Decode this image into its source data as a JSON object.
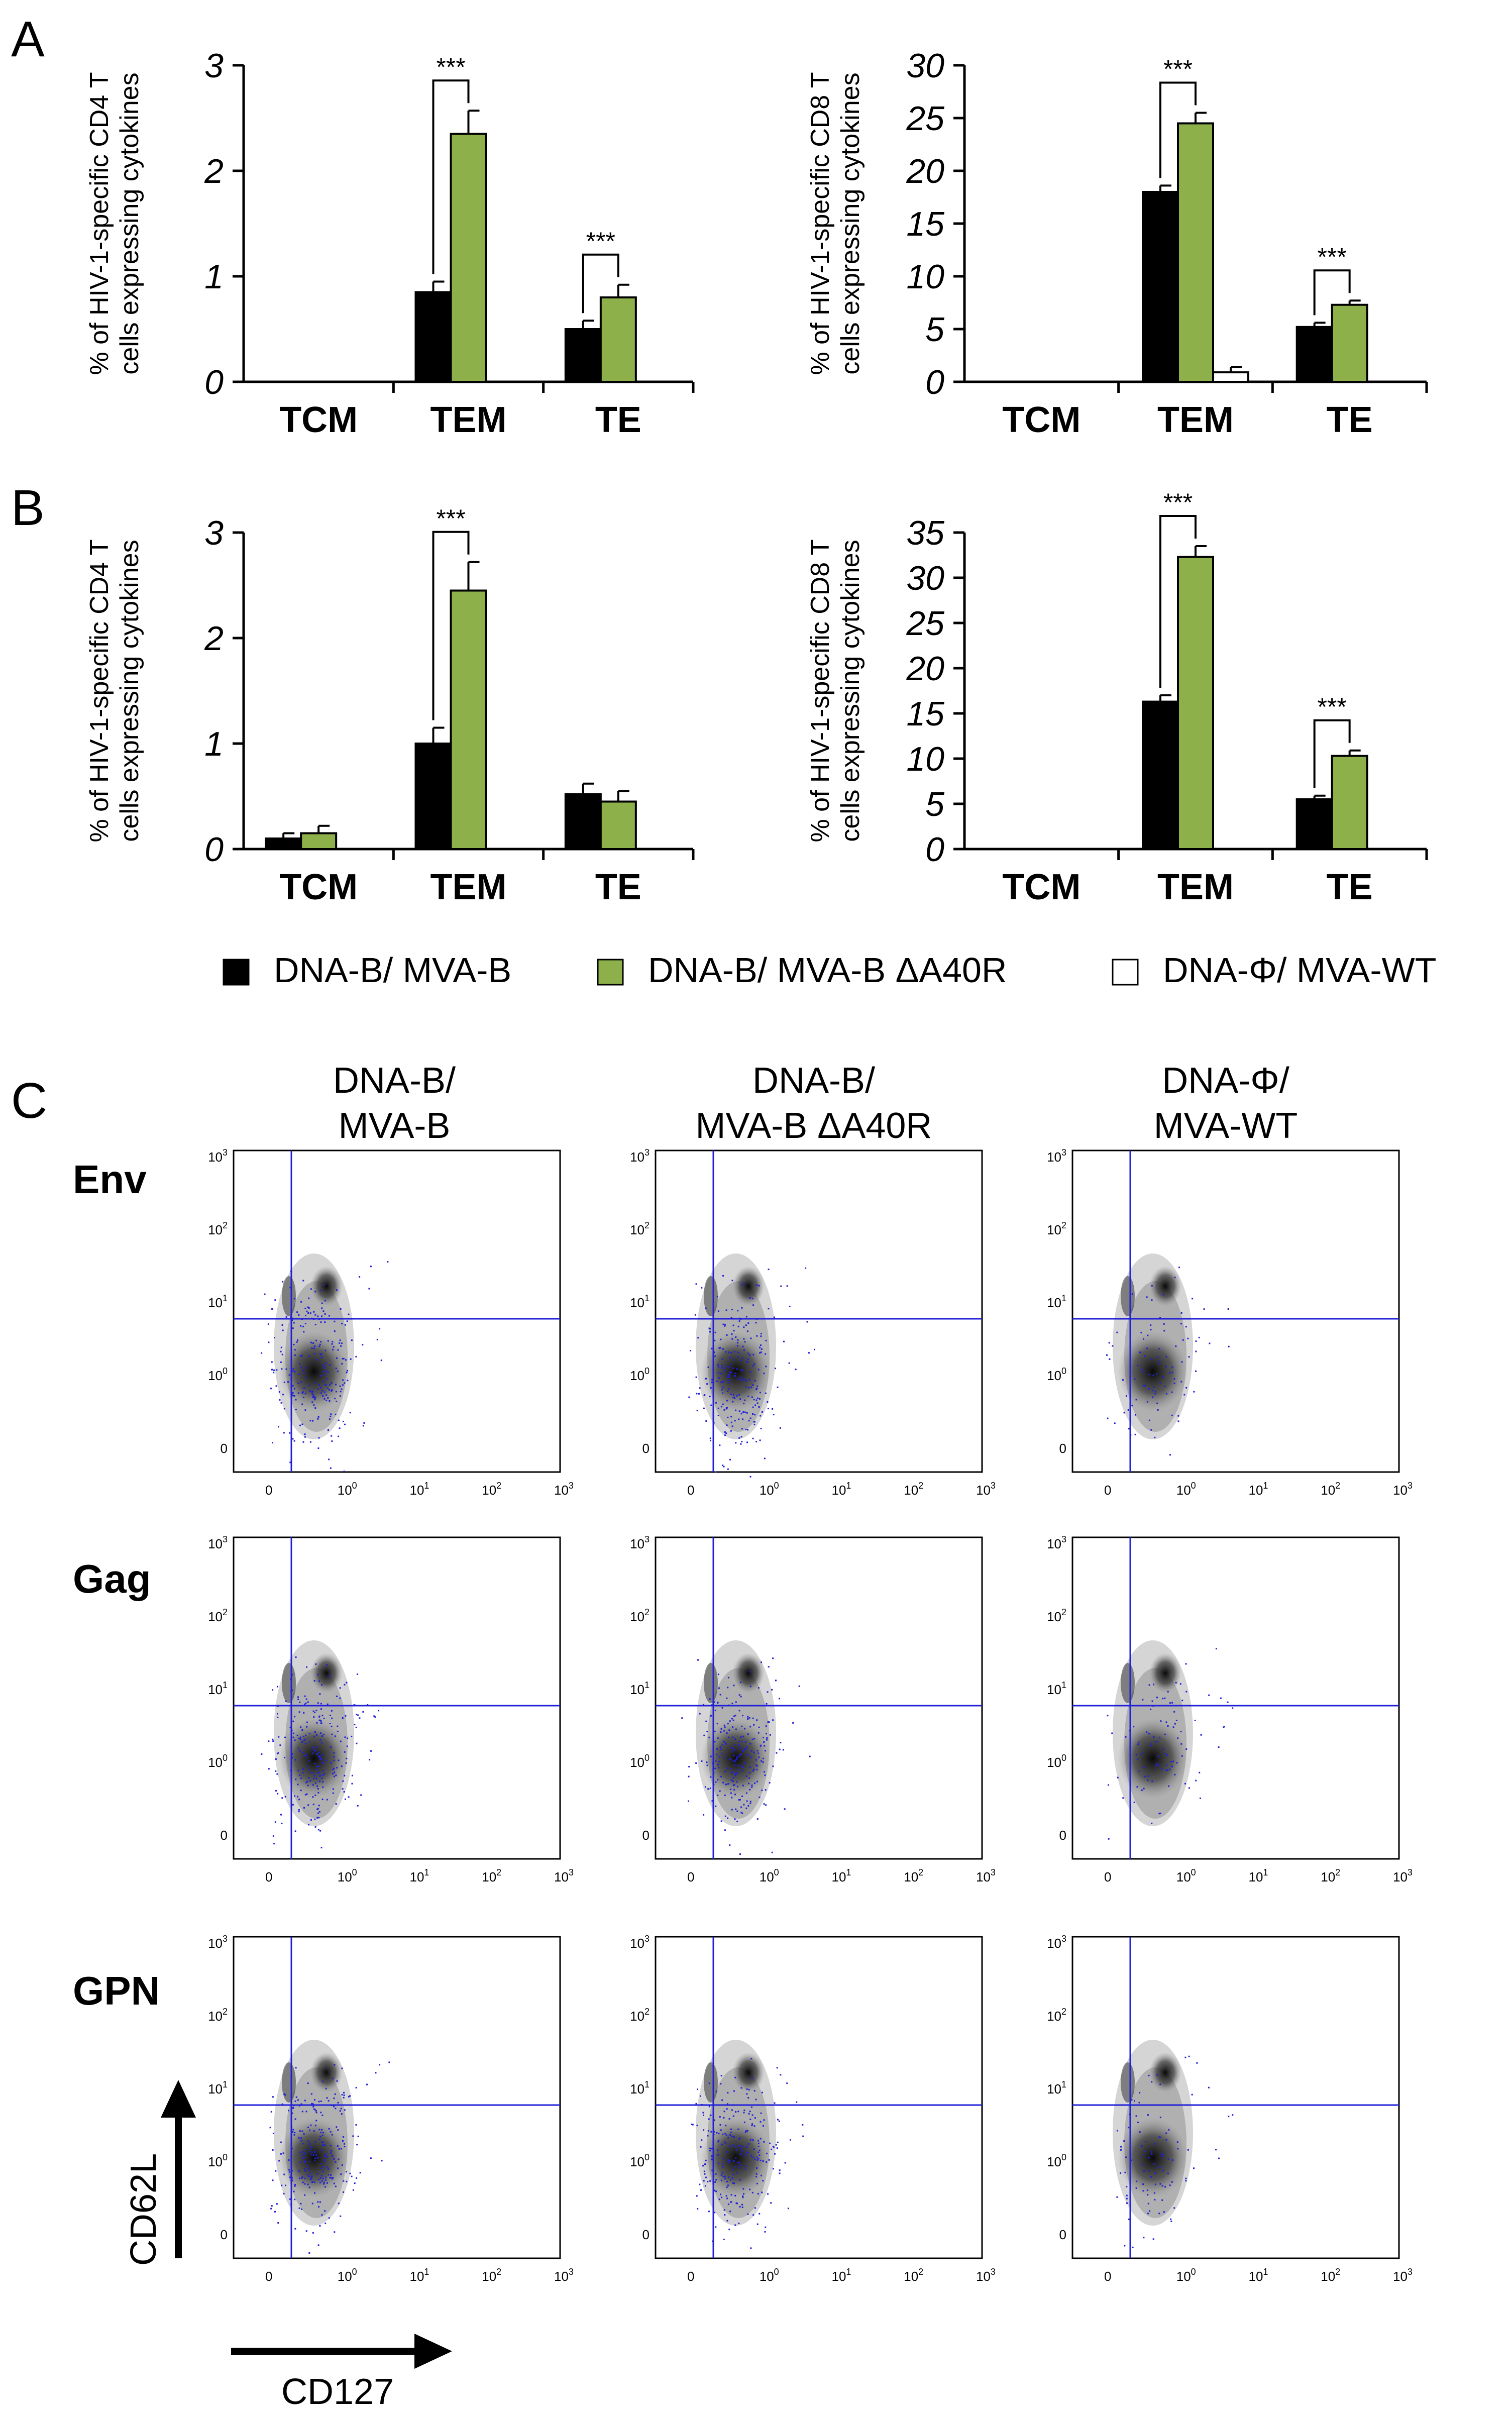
{
  "panel_labels": {
    "a": "A",
    "b": "B",
    "c": "C"
  },
  "colors": {
    "group1": "#000000",
    "group2": "#8db04b",
    "group3": "#ffffff",
    "gate": "#2020d8",
    "axis": "#000000"
  },
  "legend": {
    "items": [
      {
        "label": "DNA-B/ MVA-B",
        "color": "#000000"
      },
      {
        "label": "DNA-B/ MVA-B ΔA40R",
        "color": "#8db04b"
      },
      {
        "label": "DNA-Φ/ MVA-WT",
        "color": "#ffffff"
      }
    ]
  },
  "chart_data": [
    {
      "id": "A-CD4",
      "panel": "A",
      "type": "bar",
      "ylabel_line1": "% of HIV-1-specific CD4 T",
      "ylabel_line2": "cells expressing cytokines",
      "categories": [
        "TCM",
        "TEM",
        "TE"
      ],
      "ylim": [
        0,
        3
      ],
      "yticks": [
        "0",
        "1",
        "2",
        "3"
      ],
      "series": [
        {
          "name": "DNA-B/ MVA-B",
          "values": [
            0,
            0.85,
            0.5
          ],
          "errors": [
            0,
            0.1,
            0.08
          ]
        },
        {
          "name": "DNA-B/ MVA-B ΔA40R",
          "values": [
            0,
            2.35,
            0.8
          ],
          "errors": [
            0,
            0.22,
            0.12
          ]
        },
        {
          "name": "DNA-Φ/ MVA-WT",
          "values": [
            0,
            0,
            0
          ],
          "errors": [
            0,
            0,
            0
          ]
        }
      ],
      "significance": [
        {
          "category": "TEM",
          "label": "***"
        },
        {
          "category": "TE",
          "label": "***"
        }
      ]
    },
    {
      "id": "A-CD8",
      "panel": "A",
      "type": "bar",
      "ylabel_line1": "% of HIV-1-specific CD8 T",
      "ylabel_line2": "cells expressing cytokines",
      "categories": [
        "TCM",
        "TEM",
        "TE"
      ],
      "ylim": [
        0,
        30
      ],
      "yticks": [
        "0",
        "5",
        "10",
        "15",
        "20",
        "25",
        "30"
      ],
      "series": [
        {
          "name": "DNA-B/ MVA-B",
          "values": [
            0,
            18,
            5.2
          ],
          "errors": [
            0,
            0.6,
            0.4
          ]
        },
        {
          "name": "DNA-B/ MVA-B ΔA40R",
          "values": [
            0,
            24.5,
            7.3
          ],
          "errors": [
            0,
            1.0,
            0.4
          ]
        },
        {
          "name": "DNA-Φ/ MVA-WT",
          "values": [
            0,
            0.9,
            0
          ],
          "errors": [
            0,
            0.5,
            0
          ]
        }
      ],
      "significance": [
        {
          "category": "TEM",
          "label": "***"
        },
        {
          "category": "TE",
          "label": "***"
        }
      ]
    },
    {
      "id": "B-CD4",
      "panel": "B",
      "type": "bar",
      "ylabel_line1": "% of HIV-1-specific CD4 T",
      "ylabel_line2": "cells expressing cytokines",
      "categories": [
        "TCM",
        "TEM",
        "TE"
      ],
      "ylim": [
        0,
        3
      ],
      "yticks": [
        "0",
        "1",
        "2",
        "3"
      ],
      "series": [
        {
          "name": "DNA-B/ MVA-B",
          "values": [
            0.1,
            1.0,
            0.52
          ],
          "errors": [
            0.05,
            0.15,
            0.1
          ]
        },
        {
          "name": "DNA-B/ MVA-B ΔA40R",
          "values": [
            0.15,
            2.45,
            0.45
          ],
          "errors": [
            0.07,
            0.27,
            0.1
          ]
        },
        {
          "name": "DNA-Φ/ MVA-WT",
          "values": [
            0,
            0,
            0
          ],
          "errors": [
            0,
            0,
            0
          ]
        }
      ],
      "significance": [
        {
          "category": "TEM",
          "label": "***"
        }
      ]
    },
    {
      "id": "B-CD8",
      "panel": "B",
      "type": "bar",
      "ylabel_line1": "% of HIV-1-specific CD8 T",
      "ylabel_line2": "cells expressing cytokines",
      "categories": [
        "TCM",
        "TEM",
        "TE"
      ],
      "ylim": [
        0,
        35
      ],
      "yticks": [
        "0",
        "5",
        "10",
        "15",
        "20",
        "25",
        "30",
        "35"
      ],
      "series": [
        {
          "name": "DNA-B/ MVA-B",
          "values": [
            0,
            16.3,
            5.5
          ],
          "errors": [
            0,
            0.7,
            0.4
          ]
        },
        {
          "name": "DNA-B/ MVA-B ΔA40R",
          "values": [
            0,
            32.3,
            10.3
          ],
          "errors": [
            0,
            1.2,
            0.6
          ]
        },
        {
          "name": "DNA-Φ/ MVA-WT",
          "values": [
            0,
            0,
            0
          ],
          "errors": [
            0,
            0,
            0
          ]
        }
      ],
      "significance": [
        {
          "category": "TEM",
          "label": "***"
        },
        {
          "category": "TE",
          "label": "***"
        }
      ]
    }
  ],
  "flow": {
    "column_headers": [
      {
        "line1": "DNA-B/",
        "line2": "MVA-B"
      },
      {
        "line1": "DNA-B/",
        "line2": "MVA-B ΔA40R"
      },
      {
        "line1": "DNA-Φ/",
        "line2": "MVA-WT"
      }
    ],
    "row_labels": [
      "Env",
      "Gag",
      "GPN"
    ],
    "tick_labels": [
      "0",
      "10",
      "10",
      "10",
      "10"
    ],
    "tick_exponents": [
      "",
      "0",
      "1",
      "2",
      "3"
    ],
    "x_axis_label": "CD127",
    "y_axis_label": "CD62L"
  }
}
